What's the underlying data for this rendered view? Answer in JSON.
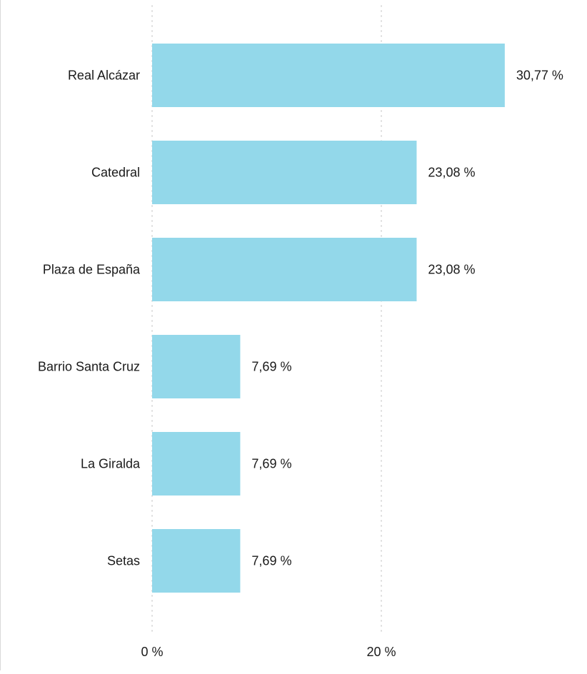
{
  "chart_data": {
    "type": "bar",
    "orientation": "horizontal",
    "categories": [
      "Real Alcázar",
      "Catedral",
      "Plaza de España",
      "Barrio Santa Cruz",
      "La Giralda",
      "Setas"
    ],
    "values": [
      30.77,
      23.08,
      23.08,
      7.69,
      7.69,
      7.69
    ],
    "value_labels": [
      "30,77 %",
      "23,08 %",
      "23,08 %",
      "7,69 %",
      "7,69 %",
      "7,69 %"
    ],
    "x_ticks": [
      0,
      20
    ],
    "x_tick_labels": [
      "0 %",
      "20 %"
    ],
    "xlim": [
      0,
      38
    ],
    "grid": "vertical dotted",
    "bar_color": "#93d8ea",
    "grid_color": "#bdbdbd",
    "text_color": "#1a1a1a"
  }
}
